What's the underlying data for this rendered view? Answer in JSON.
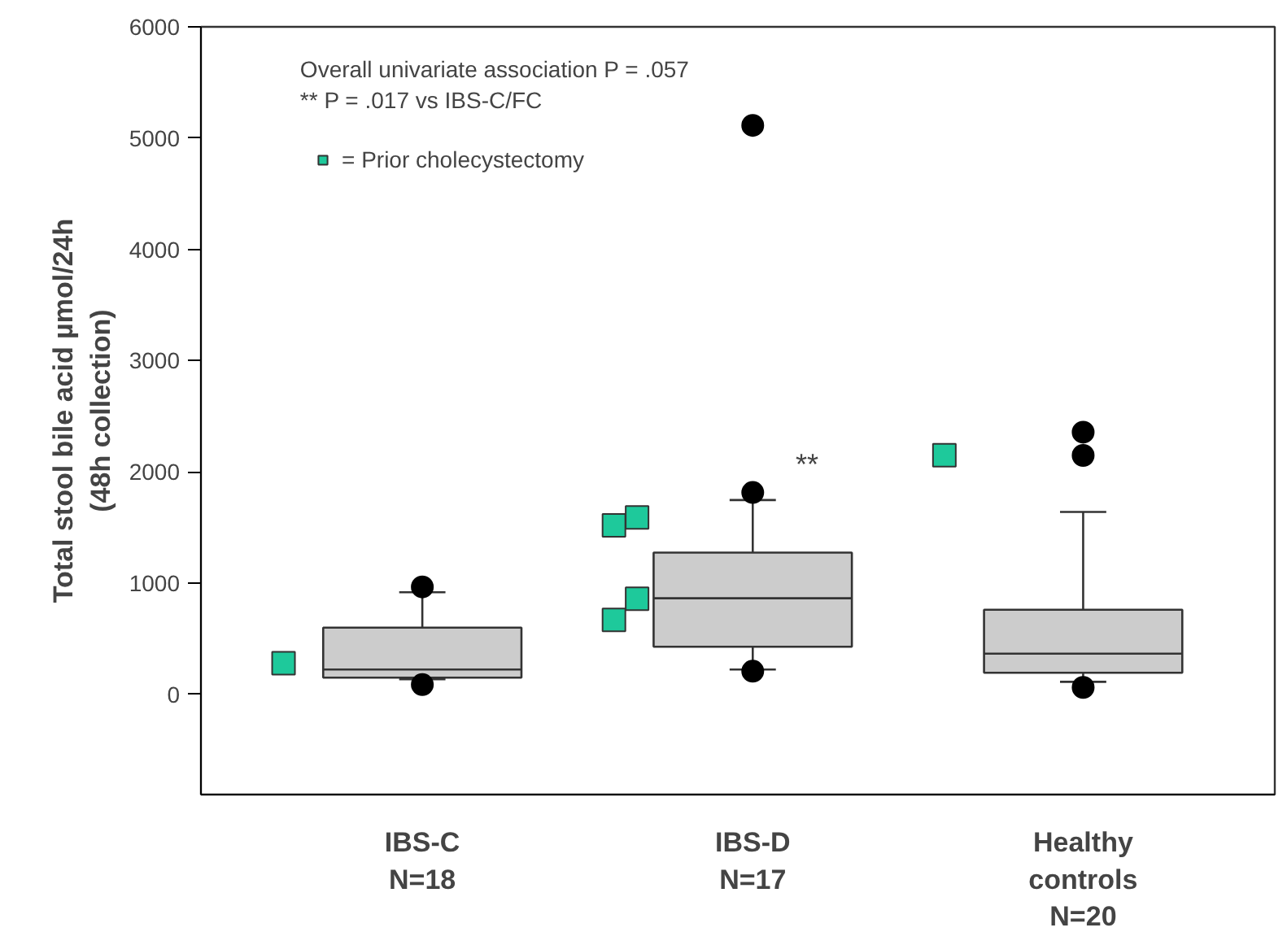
{
  "chart_data": {
    "type": "box",
    "categories": [
      "IBS-C\nN=18",
      "IBS-D\nN=17",
      "Healthy\ncontrols\nN=20"
    ],
    "ylabel": "Total stool bile acid µmol/24h\n(48h collection)",
    "ylim": [
      -900,
      6000
    ],
    "yticks": [
      0,
      1000,
      2000,
      3000,
      4000,
      5000,
      6000
    ],
    "color": "#cccccc",
    "boxes": [
      {
        "low": 136,
        "q1": 151,
        "median": 224,
        "q3": 600,
        "high": 918,
        "outliers": [
          966,
          88
        ]
      },
      {
        "low": 224,
        "q1": 429,
        "median": 864,
        "q3": 1274,
        "high": 1747,
        "outliers": [
          1815,
          209,
          5114
        ]
      },
      {
        "low": 113,
        "q1": 195,
        "median": 366,
        "q3": 761,
        "high": 1640,
        "outliers": [
          2357,
          2148,
          63
        ]
      }
    ],
    "series": [
      {
        "type": "scatter",
        "name": "= Prior cholecystectomy",
        "color": "#1ec99b",
        "marker": "square",
        "x": [
          "IBS-C\nN=18",
          "IBS-D\nN=17",
          "IBS-D\nN=17",
          "IBS-D\nN=17",
          "IBS-D\nN=17",
          "Healthy\ncontrols\nN=20"
        ],
        "values": [
          280,
          1520,
          1590,
          670,
          860,
          2150
        ]
      }
    ],
    "annotations": [
      "Overall univariate association P = .057",
      "** P = .017 vs IBS-C/FC",
      "**"
    ],
    "legend": "top left",
    "grid": false
  }
}
